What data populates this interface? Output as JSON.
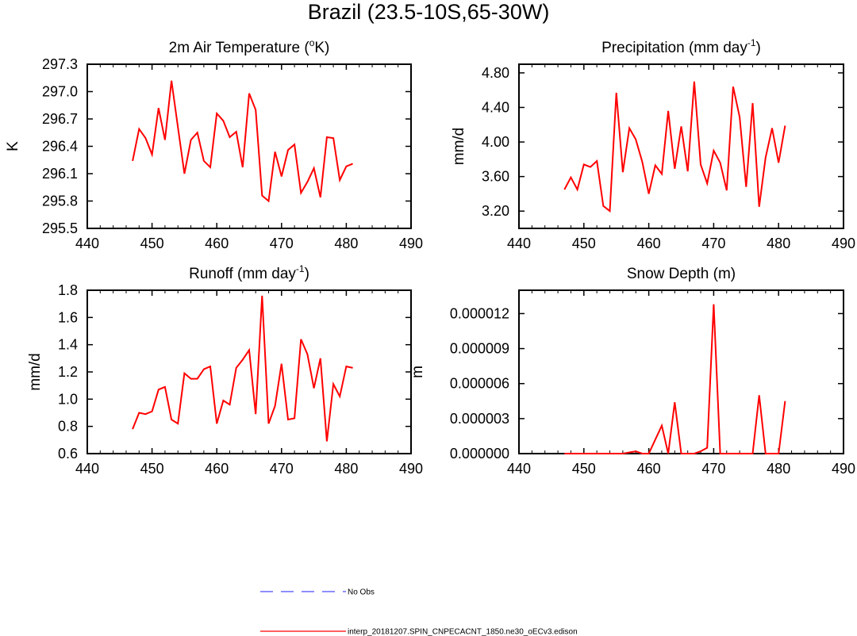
{
  "figure_title": "Brazil (23.5-10S,65-30W)",
  "legend": [
    {
      "label": "No Obs",
      "color": "#4a4aff",
      "style": "dashed"
    },
    {
      "label": "interp_20181207.SPIN_CNPECACNT_1850.ne30_oECv3.edison",
      "color": "#ff0000",
      "style": "solid"
    }
  ],
  "chart_data": [
    {
      "type": "line",
      "title": "2m Air Temperature",
      "title_superscript": "o",
      "title_suffix_units": "K",
      "xlabel": "",
      "ylabel": "K",
      "xlim": [
        440,
        490
      ],
      "ylim": [
        295.5,
        297.3
      ],
      "xticks": [
        "440",
        "450",
        "460",
        "470",
        "480",
        "490"
      ],
      "yticks": [
        "295.5",
        "295.8",
        "296.1",
        "296.4",
        "296.7",
        "297.0",
        "297.3"
      ],
      "series": [
        {
          "name": "interp_20181207.SPIN_CNPECACNT_1850.ne30_oECv3.edison",
          "color": "#ff0000",
          "x": [
            447,
            448,
            449,
            450,
            451,
            452,
            453,
            454,
            455,
            456,
            457,
            458,
            459,
            460,
            461,
            462,
            463,
            464,
            465,
            466,
            467,
            468,
            469,
            470,
            471,
            472,
            473,
            474,
            475,
            476,
            477,
            478,
            479,
            480,
            481
          ],
          "values": [
            296.24,
            296.59,
            296.49,
            296.31,
            296.82,
            296.47,
            297.12,
            296.61,
            296.1,
            296.47,
            296.55,
            296.24,
            296.17,
            296.76,
            296.68,
            296.5,
            296.56,
            296.17,
            296.98,
            296.8,
            295.86,
            295.8,
            296.34,
            296.07,
            296.36,
            296.42,
            295.89,
            296.01,
            296.16,
            295.84,
            296.5,
            296.49,
            296.03,
            296.18,
            296.21
          ]
        }
      ]
    },
    {
      "type": "line",
      "title": "Precipitation (mm day",
      "title_superscript": "-1",
      "title_suffix": ")",
      "xlabel": "",
      "ylabel": "mm/d",
      "xlim": [
        440,
        490
      ],
      "ylim": [
        3.0,
        4.9
      ],
      "xticks": [
        "440",
        "450",
        "460",
        "470",
        "480",
        "490"
      ],
      "yticks": [
        "3.20",
        "3.60",
        "4.00",
        "4.40",
        "4.80"
      ],
      "ytick_values": [
        3.2,
        3.6,
        4.0,
        4.4,
        4.8
      ],
      "series": [
        {
          "name": "interp_20181207.SPIN_CNPECACNT_1850.ne30_oECv3.edison",
          "color": "#ff0000",
          "x": [
            447,
            448,
            449,
            450,
            451,
            452,
            453,
            454,
            455,
            456,
            457,
            458,
            459,
            460,
            461,
            462,
            463,
            464,
            465,
            466,
            467,
            468,
            469,
            470,
            471,
            472,
            473,
            474,
            475,
            476,
            477,
            478,
            479,
            480,
            481
          ],
          "values": [
            3.45,
            3.59,
            3.45,
            3.74,
            3.71,
            3.78,
            3.26,
            3.2,
            4.57,
            3.65,
            4.16,
            4.03,
            3.77,
            3.4,
            3.73,
            3.63,
            4.36,
            3.69,
            4.18,
            3.66,
            4.7,
            3.74,
            3.52,
            3.9,
            3.76,
            3.44,
            4.64,
            4.29,
            3.48,
            4.45,
            3.25,
            3.82,
            4.16,
            3.76,
            4.19
          ]
        }
      ]
    },
    {
      "type": "line",
      "title": "Runoff (mm day",
      "title_superscript": "-1",
      "title_suffix": ")",
      "xlabel": "",
      "ylabel": "mm/d",
      "xlim": [
        440,
        490
      ],
      "ylim": [
        0.6,
        1.8
      ],
      "xticks": [
        "440",
        "450",
        "460",
        "470",
        "480",
        "490"
      ],
      "yticks": [
        "0.6",
        "0.8",
        "1.0",
        "1.2",
        "1.4",
        "1.6",
        "1.8"
      ],
      "series": [
        {
          "name": "interp_20181207.SPIN_CNPECACNT_1850.ne30_oECv3.edison",
          "color": "#ff0000",
          "x": [
            447,
            448,
            449,
            450,
            451,
            452,
            453,
            454,
            455,
            456,
            457,
            458,
            459,
            460,
            461,
            462,
            463,
            464,
            465,
            466,
            467,
            468,
            469,
            470,
            471,
            472,
            473,
            474,
            475,
            476,
            477,
            478,
            479,
            480,
            481
          ],
          "values": [
            0.78,
            0.9,
            0.89,
            0.91,
            1.07,
            1.09,
            0.85,
            0.82,
            1.19,
            1.15,
            1.15,
            1.22,
            1.24,
            0.82,
            0.99,
            0.96,
            1.23,
            1.29,
            1.36,
            0.89,
            1.76,
            0.82,
            0.95,
            1.26,
            0.85,
            0.86,
            1.44,
            1.33,
            1.08,
            1.3,
            0.69,
            1.11,
            1.02,
            1.24,
            1.23
          ]
        }
      ]
    },
    {
      "type": "line",
      "title": "Snow Depth (m)",
      "xlabel": "",
      "ylabel": "m",
      "xlim": [
        440,
        490
      ],
      "ylim": [
        0,
        1.4e-05
      ],
      "xticks": [
        "440",
        "450",
        "460",
        "470",
        "480",
        "490"
      ],
      "yticks": [
        "0.000000",
        "0.000003",
        "0.000006",
        "0.000009",
        "0.000012"
      ],
      "ytick_values": [
        0,
        3e-06,
        6e-06,
        9e-06,
        1.2e-05
      ],
      "series": [
        {
          "name": "interp_20181207.SPIN_CNPECACNT_1850.ne30_oECv3.edison",
          "color": "#ff0000",
          "x": [
            447,
            448,
            449,
            450,
            451,
            452,
            453,
            454,
            455,
            456,
            457,
            458,
            459,
            460,
            461,
            462,
            463,
            464,
            465,
            466,
            467,
            468,
            469,
            470,
            471,
            472,
            473,
            474,
            475,
            476,
            477,
            478,
            479,
            480,
            481
          ],
          "values": [
            0,
            0,
            0,
            0,
            0,
            0,
            0,
            0,
            0,
            0,
            1e-07,
            2e-07,
            0,
            0,
            1.2e-06,
            2.4e-06,
            0,
            4.4e-06,
            0,
            0,
            0,
            2e-07,
            5e-07,
            1.28e-05,
            0,
            0,
            0,
            0,
            0,
            0,
            5e-06,
            0,
            0,
            0,
            4.5e-06
          ]
        }
      ]
    }
  ]
}
